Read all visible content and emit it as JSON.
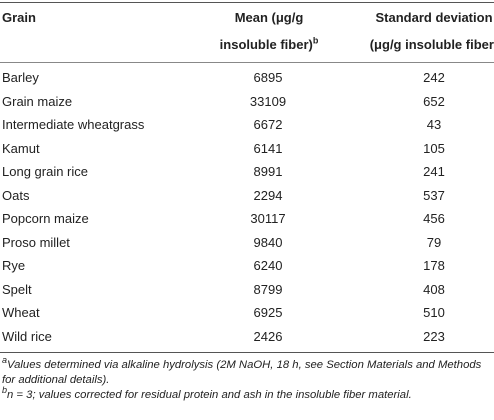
{
  "table": {
    "columns": [
      {
        "label": "Grain"
      },
      {
        "label": "Mean (μg/g insoluble fiber)",
        "note": "b"
      },
      {
        "label": "Standard deviation (μg/g insoluble fiber)"
      }
    ],
    "rows": [
      [
        "Barley",
        6895,
        242
      ],
      [
        "Grain maize",
        33109,
        652
      ],
      [
        "Intermediate wheatgrass",
        6672,
        43
      ],
      [
        "Kamut",
        6141,
        105
      ],
      [
        "Long grain rice",
        8991,
        241
      ],
      [
        "Oats",
        2294,
        537
      ],
      [
        "Popcorn maize",
        30117,
        456
      ],
      [
        "Proso millet",
        9840,
        79
      ],
      [
        "Rye",
        6240,
        178
      ],
      [
        "Spelt",
        8799,
        408
      ],
      [
        "Wheat",
        6925,
        510
      ],
      [
        "Wild rice",
        2426,
        223
      ]
    ]
  },
  "footnotes": [
    {
      "mark": "a",
      "text": "Values determined via alkaline hydrolysis (2M NaOH, 18 h, see Section Materials and Methods for additional details)."
    },
    {
      "mark": "b",
      "text": "n = 3; values corrected for residual protein and ash in the insoluble fiber material."
    }
  ]
}
